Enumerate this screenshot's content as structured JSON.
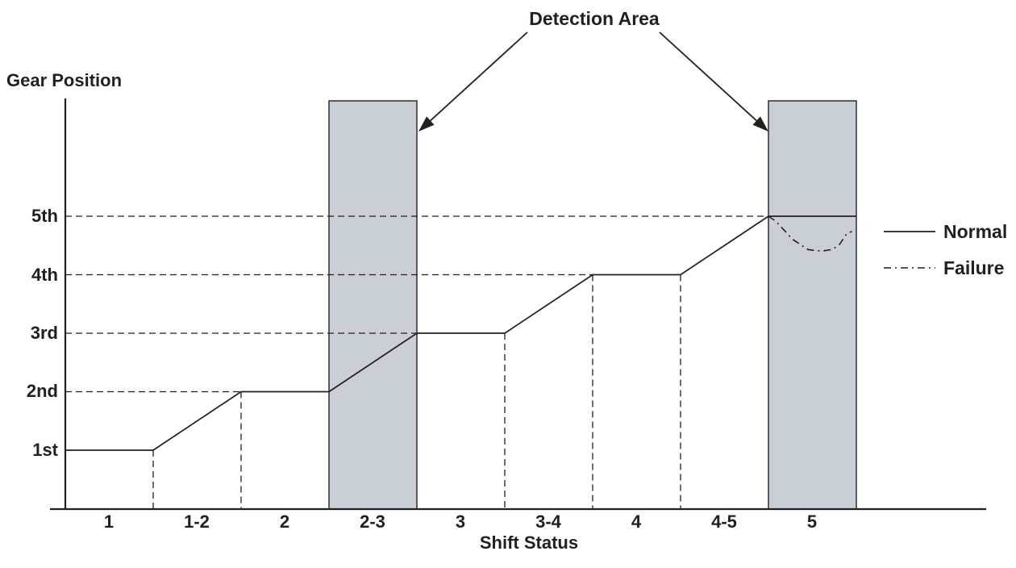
{
  "title": "Detection Area",
  "axes": {
    "y_label": "Gear Position",
    "x_label": "Shift Status",
    "y_ticks": [
      "1st",
      "2nd",
      "3rd",
      "4th",
      "5th"
    ],
    "x_ticks": [
      "1",
      "1-2",
      "2",
      "2-3",
      "3",
      "3-4",
      "4",
      "4-5",
      "5"
    ]
  },
  "legend": [
    {
      "label": "Normal",
      "style": "solid"
    },
    {
      "label": "Failure",
      "style": "dashdot"
    }
  ],
  "colors": {
    "ink": "#231f20",
    "area_fill": "#cacfd5",
    "background": "#ffffff"
  },
  "chart_data": {
    "type": "line",
    "xlabel": "Shift Status",
    "ylabel": "Gear Position",
    "x_categories": [
      "1",
      "1-2",
      "2",
      "2-3",
      "3",
      "3-4",
      "4",
      "4-5",
      "5"
    ],
    "y_categories": [
      "1st",
      "2nd",
      "3rd",
      "4th",
      "5th"
    ],
    "detection_area_categories": [
      "2-3",
      "5"
    ],
    "annotations": [
      {
        "text": "Detection Area",
        "targets": [
          "2-3",
          "5"
        ]
      }
    ],
    "series": [
      {
        "name": "Normal",
        "style": "solid",
        "points_u_gear": [
          [
            0,
            1
          ],
          [
            1,
            1
          ],
          [
            2,
            2
          ],
          [
            3,
            2
          ],
          [
            4,
            3
          ],
          [
            5,
            3
          ],
          [
            6,
            4
          ],
          [
            7,
            4
          ],
          [
            8,
            5
          ],
          [
            9,
            5
          ]
        ]
      },
      {
        "name": "Failure",
        "style": "dashdot",
        "points_u_gear": [
          [
            8.0,
            5.0
          ],
          [
            8.08,
            4.92
          ],
          [
            8.18,
            4.76
          ],
          [
            8.27,
            4.61
          ],
          [
            8.45,
            4.43
          ],
          [
            8.55,
            4.41
          ],
          [
            8.63,
            4.41
          ],
          [
            8.72,
            4.43
          ],
          [
            8.8,
            4.5
          ],
          [
            8.89,
            4.7
          ],
          [
            8.95,
            4.74
          ]
        ]
      }
    ],
    "h_gridlines": [
      {
        "gear": 2,
        "extends_to_u": 2
      },
      {
        "gear": 3,
        "extends_to_u": 4
      },
      {
        "gear": 4,
        "extends_to_u": 6
      },
      {
        "gear": 5,
        "extends_to_u": 8
      }
    ],
    "v_gridlines": [
      {
        "u": 1,
        "from_gear": 1
      },
      {
        "u": 2,
        "from_gear": 2
      },
      {
        "u": 5,
        "from_gear": 3
      },
      {
        "u": 6,
        "from_gear": 4
      },
      {
        "u": 7,
        "from_gear": 4
      }
    ]
  }
}
